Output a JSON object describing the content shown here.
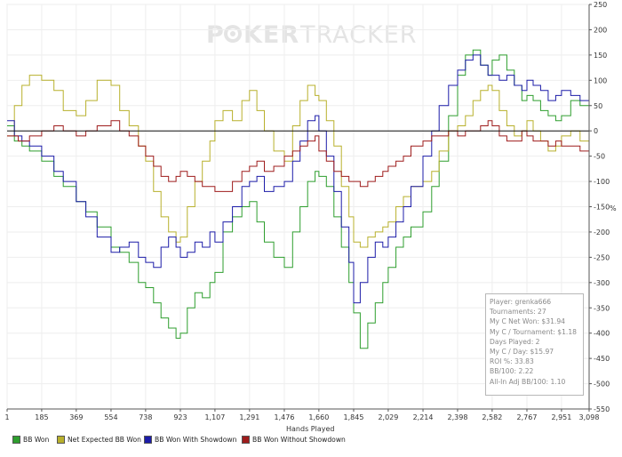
{
  "chart_data": {
    "type": "line",
    "watermark": {
      "left": "P",
      "right": "KER",
      "tracker": "TRACKER"
    },
    "xlabel": "Hands Played",
    "ylabel": "%",
    "xlim": [
      1,
      3098
    ],
    "ylim": [
      -550,
      250
    ],
    "x_ticks": [
      {
        "v": 1,
        "label": "1"
      },
      {
        "v": 185,
        "label": "185"
      },
      {
        "v": 369,
        "label": "369"
      },
      {
        "v": 554,
        "label": "554"
      },
      {
        "v": 738,
        "label": "738"
      },
      {
        "v": 923,
        "label": "923"
      },
      {
        "v": 1107,
        "label": "1,107"
      },
      {
        "v": 1291,
        "label": "1,291"
      },
      {
        "v": 1476,
        "label": "1,476"
      },
      {
        "v": 1660,
        "label": "1,660"
      },
      {
        "v": 1845,
        "label": "1,845"
      },
      {
        "v": 2029,
        "label": "2,029"
      },
      {
        "v": 2214,
        "label": "2,214"
      },
      {
        "v": 2398,
        "label": "2,398"
      },
      {
        "v": 2582,
        "label": "2,582"
      },
      {
        "v": 2767,
        "label": "2,767"
      },
      {
        "v": 2951,
        "label": "2,951"
      },
      {
        "v": 3098,
        "label": "3,098"
      }
    ],
    "y_ticks": [
      250,
      200,
      150,
      100,
      50,
      0,
      -50,
      -100,
      -150,
      -200,
      -250,
      -300,
      -350,
      -400,
      -450,
      -500,
      -550
    ],
    "series": [
      {
        "name": "BB Won",
        "color": "#2e9e2e",
        "x": [
          1,
          40,
          80,
          120,
          185,
          250,
          300,
          369,
          420,
          480,
          554,
          600,
          650,
          700,
          738,
          780,
          820,
          860,
          900,
          923,
          960,
          1000,
          1040,
          1080,
          1107,
          1150,
          1200,
          1250,
          1291,
          1330,
          1370,
          1420,
          1476,
          1520,
          1560,
          1600,
          1640,
          1660,
          1700,
          1740,
          1780,
          1820,
          1845,
          1880,
          1920,
          1960,
          2000,
          2029,
          2070,
          2110,
          2150,
          2214,
          2260,
          2300,
          2350,
          2398,
          2440,
          2480,
          2520,
          2560,
          2582,
          2620,
          2660,
          2700,
          2740,
          2767,
          2800,
          2840,
          2880,
          2920,
          2951,
          3000,
          3050,
          3098
        ],
        "y": [
          10,
          -20,
          -30,
          -40,
          -60,
          -90,
          -110,
          -140,
          -160,
          -190,
          -230,
          -240,
          -260,
          -300,
          -310,
          -340,
          -370,
          -390,
          -410,
          -400,
          -350,
          -320,
          -330,
          -300,
          -280,
          -200,
          -170,
          -150,
          -140,
          -180,
          -220,
          -250,
          -270,
          -200,
          -150,
          -100,
          -80,
          -90,
          -110,
          -170,
          -230,
          -300,
          -360,
          -430,
          -380,
          -340,
          -300,
          -270,
          -230,
          -210,
          -190,
          -160,
          -110,
          -60,
          30,
          110,
          150,
          160,
          130,
          110,
          140,
          150,
          120,
          90,
          60,
          70,
          60,
          40,
          30,
          20,
          30,
          60,
          50,
          20
        ]
      },
      {
        "name": "Net Expected BB Won",
        "color": "#b8b02c",
        "x": [
          1,
          40,
          80,
          120,
          185,
          250,
          300,
          369,
          420,
          480,
          554,
          600,
          650,
          700,
          738,
          780,
          820,
          860,
          900,
          923,
          960,
          1000,
          1040,
          1080,
          1107,
          1150,
          1200,
          1250,
          1291,
          1330,
          1370,
          1420,
          1476,
          1520,
          1560,
          1600,
          1640,
          1660,
          1700,
          1740,
          1780,
          1820,
          1845,
          1880,
          1920,
          1960,
          2000,
          2029,
          2070,
          2110,
          2150,
          2214,
          2260,
          2300,
          2350,
          2398,
          2440,
          2480,
          2520,
          2560,
          2582,
          2620,
          2660,
          2700,
          2740,
          2767,
          2800,
          2840,
          2880,
          2920,
          2951,
          3000,
          3050,
          3098
        ],
        "y": [
          -10,
          50,
          90,
          110,
          100,
          80,
          40,
          30,
          60,
          100,
          90,
          40,
          10,
          -30,
          -60,
          -120,
          -170,
          -200,
          -220,
          -210,
          -150,
          -100,
          -60,
          -20,
          20,
          40,
          20,
          60,
          80,
          40,
          0,
          -40,
          -60,
          10,
          60,
          90,
          70,
          60,
          20,
          -30,
          -110,
          -170,
          -220,
          -230,
          -210,
          -200,
          -190,
          -180,
          -150,
          -130,
          -110,
          -100,
          -80,
          -40,
          0,
          10,
          30,
          60,
          80,
          90,
          80,
          40,
          10,
          -10,
          0,
          20,
          0,
          -20,
          -40,
          -30,
          -10,
          0,
          -20,
          -30
        ]
      },
      {
        "name": "BB Won With Showdown",
        "color": "#1c1ca8",
        "x": [
          1,
          40,
          80,
          120,
          185,
          250,
          300,
          369,
          420,
          480,
          554,
          600,
          650,
          700,
          738,
          780,
          820,
          860,
          900,
          923,
          960,
          1000,
          1040,
          1080,
          1107,
          1150,
          1200,
          1250,
          1291,
          1330,
          1370,
          1420,
          1476,
          1520,
          1560,
          1600,
          1640,
          1660,
          1700,
          1740,
          1780,
          1820,
          1845,
          1880,
          1920,
          1960,
          2000,
          2029,
          2070,
          2110,
          2150,
          2214,
          2260,
          2300,
          2350,
          2398,
          2440,
          2480,
          2520,
          2560,
          2582,
          2620,
          2660,
          2700,
          2740,
          2767,
          2800,
          2840,
          2880,
          2920,
          2951,
          3000,
          3050,
          3098
        ],
        "y": [
          20,
          -10,
          -20,
          -30,
          -50,
          -80,
          -100,
          -140,
          -170,
          -210,
          -240,
          -230,
          -220,
          -250,
          -260,
          -270,
          -230,
          -210,
          -230,
          -250,
          -240,
          -220,
          -230,
          -200,
          -220,
          -180,
          -150,
          -110,
          -100,
          -90,
          -120,
          -110,
          -100,
          -60,
          -20,
          20,
          30,
          0,
          -50,
          -120,
          -190,
          -260,
          -340,
          -300,
          -250,
          -220,
          -230,
          -210,
          -180,
          -150,
          -110,
          -50,
          0,
          50,
          90,
          120,
          140,
          150,
          130,
          110,
          110,
          100,
          110,
          90,
          80,
          100,
          90,
          80,
          60,
          70,
          80,
          70,
          60,
          50
        ]
      },
      {
        "name": "BB Won Without Showdown",
        "color": "#9e1c1c",
        "x": [
          1,
          60,
          120,
          185,
          250,
          300,
          369,
          420,
          480,
          554,
          600,
          650,
          700,
          738,
          780,
          820,
          860,
          900,
          923,
          960,
          1000,
          1040,
          1080,
          1107,
          1150,
          1200,
          1250,
          1291,
          1330,
          1370,
          1420,
          1476,
          1520,
          1560,
          1600,
          1640,
          1660,
          1700,
          1740,
          1780,
          1820,
          1845,
          1880,
          1920,
          1960,
          2000,
          2029,
          2070,
          2110,
          2150,
          2214,
          2260,
          2300,
          2350,
          2398,
          2440,
          2480,
          2520,
          2560,
          2582,
          2620,
          2660,
          2700,
          2740,
          2767,
          2800,
          2840,
          2880,
          2920,
          2951,
          3000,
          3050,
          3098
        ],
        "y": [
          -10,
          -20,
          -10,
          0,
          10,
          0,
          -10,
          0,
          10,
          20,
          0,
          -10,
          -30,
          -50,
          -70,
          -90,
          -100,
          -90,
          -80,
          -90,
          -100,
          -110,
          -110,
          -120,
          -120,
          -100,
          -80,
          -70,
          -60,
          -80,
          -70,
          -50,
          -40,
          -30,
          -20,
          -10,
          -40,
          -60,
          -80,
          -90,
          -100,
          -100,
          -110,
          -100,
          -90,
          -80,
          -70,
          -60,
          -50,
          -30,
          -20,
          -10,
          -10,
          0,
          -10,
          0,
          0,
          10,
          20,
          10,
          -10,
          -20,
          -20,
          0,
          -10,
          -20,
          -20,
          -30,
          -20,
          -30,
          -30,
          -40,
          -40
        ]
      }
    ],
    "hline": 0
  },
  "stats_panel": {
    "lines": [
      "Player: grenka666",
      "Tournaments: 27",
      "My C Net Won: $31.94",
      "My C / Tournament: $1.18",
      "Days Played: 2",
      "My C / Day: $15.97",
      "ROI %: 33.83",
      "BB/100: 2.22",
      "All-In Adj BB/100: 1.10"
    ]
  },
  "legend": {
    "items": [
      {
        "label": "BB Won",
        "color": "#2e9e2e"
      },
      {
        "label": "Net Expected BB Won",
        "color": "#b8b02c"
      },
      {
        "label": "BB Won With Showdown",
        "color": "#1c1ca8"
      },
      {
        "label": "BB Won Without Showdown",
        "color": "#9e1c1c"
      }
    ]
  }
}
